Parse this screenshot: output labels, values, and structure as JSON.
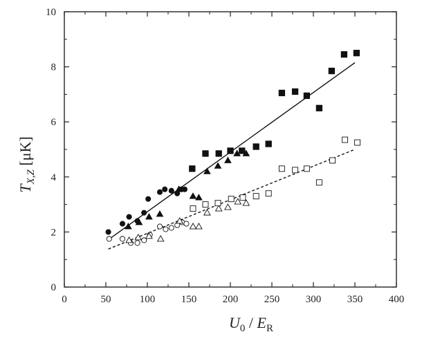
{
  "chart_data": {
    "type": "scatter",
    "title": "",
    "xlabel": {
      "main": "U",
      "sub": "0",
      "sep": " / ",
      "main2": "E",
      "sub2": "R"
    },
    "ylabel": {
      "main": "T",
      "sub": "X,Z",
      "unit": " [μK]"
    },
    "xlim": [
      0,
      400
    ],
    "ylim": [
      0,
      10
    ],
    "x_ticks": [
      0,
      50,
      100,
      150,
      200,
      250,
      300,
      350,
      400
    ],
    "y_ticks": [
      0,
      2,
      4,
      6,
      8,
      10
    ],
    "grid": false,
    "legend": "none",
    "series": [
      {
        "marker": "filled-circle",
        "points": [
          [
            53,
            2.0
          ],
          [
            70,
            2.3
          ],
          [
            78,
            2.55
          ],
          [
            88,
            2.4
          ],
          [
            96,
            2.7
          ],
          [
            101,
            3.2
          ],
          [
            115,
            3.45
          ],
          [
            121,
            3.55
          ],
          [
            129,
            3.5
          ],
          [
            136,
            3.4
          ],
          [
            141,
            3.55
          ],
          [
            145,
            3.55
          ]
        ]
      },
      {
        "marker": "filled-triangle",
        "points": [
          [
            77,
            2.2
          ],
          [
            90,
            2.35
          ],
          [
            102,
            2.55
          ],
          [
            115,
            2.65
          ],
          [
            138,
            3.55
          ],
          [
            155,
            3.3
          ],
          [
            162,
            3.25
          ],
          [
            172,
            4.2
          ],
          [
            185,
            4.4
          ],
          [
            197,
            4.6
          ],
          [
            208,
            4.85
          ],
          [
            219,
            4.85
          ]
        ]
      },
      {
        "marker": "filled-square",
        "points": [
          [
            154,
            4.3
          ],
          [
            170,
            4.85
          ],
          [
            186,
            4.85
          ],
          [
            200,
            4.95
          ],
          [
            214,
            4.95
          ],
          [
            231,
            5.1
          ],
          [
            246,
            5.2
          ],
          [
            262,
            7.05
          ],
          [
            278,
            7.1
          ],
          [
            292,
            6.95
          ],
          [
            307,
            6.5
          ],
          [
            322,
            7.85
          ],
          [
            337,
            8.45
          ],
          [
            352,
            8.5
          ]
        ]
      },
      {
        "marker": "open-circle",
        "points": [
          [
            54,
            1.75
          ],
          [
            70,
            1.75
          ],
          [
            80,
            1.6
          ],
          [
            88,
            1.6
          ],
          [
            96,
            1.7
          ],
          [
            103,
            1.9
          ],
          [
            115,
            2.2
          ],
          [
            122,
            2.1
          ],
          [
            129,
            2.15
          ],
          [
            136,
            2.25
          ],
          [
            142,
            2.35
          ],
          [
            147,
            2.3
          ]
        ]
      },
      {
        "marker": "open-triangle",
        "points": [
          [
            78,
            1.7
          ],
          [
            89,
            1.8
          ],
          [
            102,
            1.85
          ],
          [
            116,
            1.75
          ],
          [
            139,
            2.4
          ],
          [
            155,
            2.2
          ],
          [
            162,
            2.2
          ],
          [
            172,
            2.7
          ],
          [
            186,
            2.85
          ],
          [
            197,
            2.9
          ],
          [
            209,
            3.1
          ],
          [
            219,
            3.05
          ]
        ]
      },
      {
        "marker": "open-square",
        "points": [
          [
            155,
            2.85
          ],
          [
            170,
            3.0
          ],
          [
            185,
            3.05
          ],
          [
            201,
            3.2
          ],
          [
            215,
            3.25
          ],
          [
            231,
            3.3
          ],
          [
            246,
            3.4
          ],
          [
            262,
            4.3
          ],
          [
            278,
            4.25
          ],
          [
            292,
            4.3
          ],
          [
            307,
            3.8
          ],
          [
            323,
            4.6
          ],
          [
            338,
            5.35
          ],
          [
            353,
            5.25
          ]
        ]
      }
    ],
    "fits": [
      {
        "style": "solid",
        "x": [
          53,
          350
        ],
        "y": [
          1.72,
          8.15
        ]
      },
      {
        "style": "dashed",
        "x": [
          53,
          350
        ],
        "y": [
          1.38,
          5.0
        ]
      }
    ]
  }
}
